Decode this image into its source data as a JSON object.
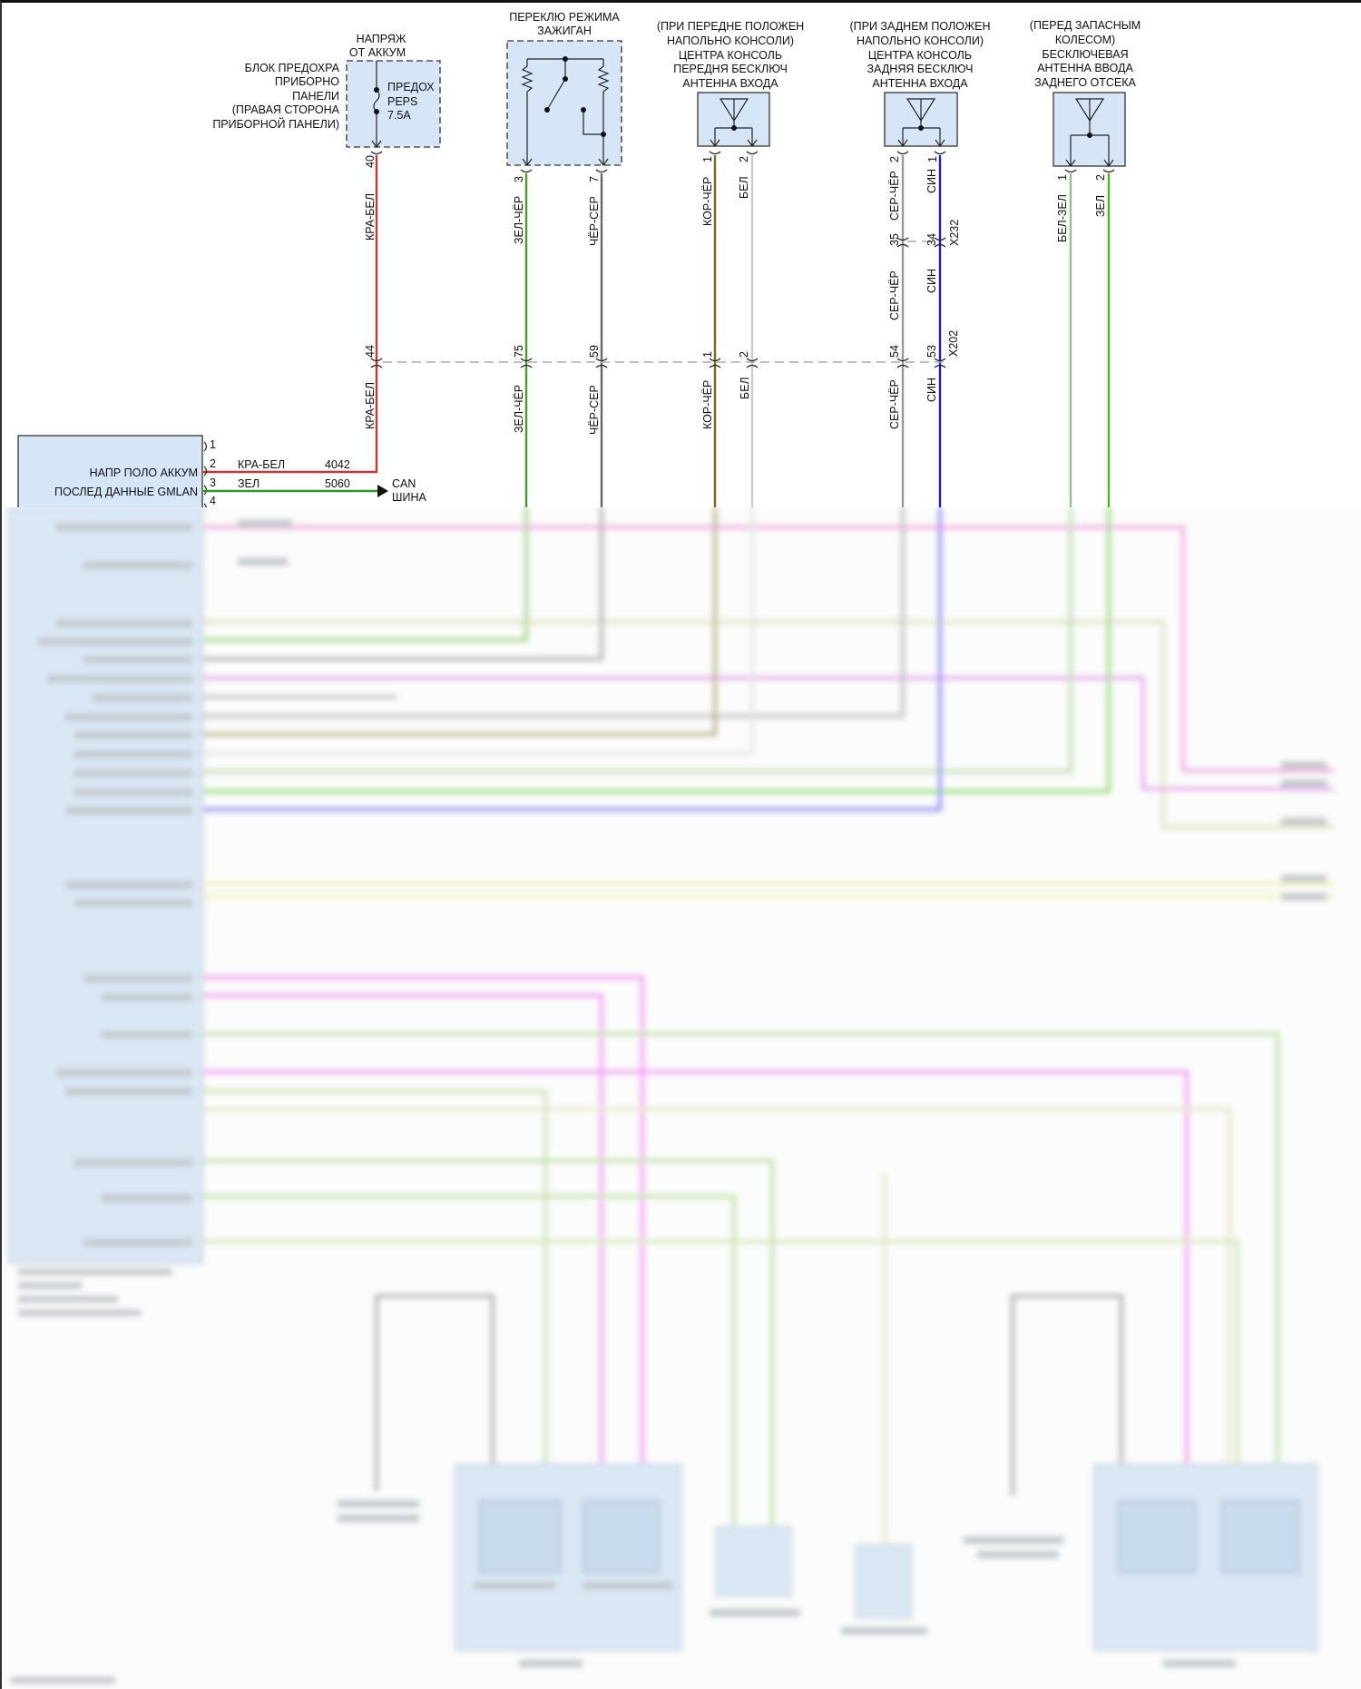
{
  "fuse_block": {
    "supply_title": [
      "НАПРЯЖ",
      "ОТ АККУМ"
    ],
    "label": [
      "БЛОК ПРЕДОХРА",
      "ПРИБОРНО",
      "ПАНЕЛИ",
      "(ПРАВАЯ СТОРОНА",
      "ПРИБОРНОЙ ПАНЕЛИ)"
    ],
    "fuse": [
      "ПРЕДОХ",
      "PEPS",
      "7.5A"
    ],
    "pin": "40"
  },
  "ignition_switch": {
    "title": [
      "ПЕРЕКЛЮ РЕЖИМА",
      "ЗАЖИГАН"
    ],
    "pins": [
      "3",
      "7"
    ]
  },
  "antenna_front": {
    "title": [
      "(ПРИ ПЕРЕДНЕ ПОЛОЖЕН",
      "НАПОЛЬНО КОНСОЛИ)",
      "ЦЕНТРА КОНСОЛЬ",
      "ПЕРЕДНЯ БЕСКЛЮЧ",
      "АНТЕННА ВХОДА"
    ],
    "pins": [
      "1",
      "2"
    ]
  },
  "antenna_rear": {
    "title": [
      "(ПРИ ЗАДНЕМ ПОЛОЖЕН",
      "НАПОЛЬНО КОНСОЛИ)",
      "ЦЕНТРА КОНСОЛЬ",
      "ЗАДНЯЯ БЕСКЛЮЧ",
      "АНТЕННА ВХОДА"
    ],
    "pins": [
      "2",
      "1"
    ]
  },
  "antenna_trunk": {
    "title": [
      "(ПЕРЕД ЗАПАСНЫМ",
      "КОЛЕСОМ)",
      "БЕСКЛЮЧЕВАЯ",
      "АНТЕННА ВВОДА",
      "ЗАДНЕГО ОТСЕКА"
    ],
    "pins": [
      "1",
      "2"
    ],
    "wires": [
      "БЕЛ-ЗЕЛ",
      "ЗЕЛ"
    ]
  },
  "wires_upper": [
    "КРА-БЕЛ",
    "ЗЕЛ-ЧЁР",
    "ЧЁР-СЕР",
    "КОР-ЧЁР",
    "БЕЛ",
    "СЕР-ЧЁР",
    "СИН"
  ],
  "inline_x232": {
    "name": "X232",
    "pins": [
      "35",
      "34"
    ],
    "wires": [
      "СЕР-ЧЁР",
      "СИН"
    ]
  },
  "inline_x202": {
    "name": "X202",
    "pins": [
      "44",
      "75",
      "59",
      "1",
      "2",
      "54",
      "53"
    ]
  },
  "wires_lower": [
    "КРА-БЕЛ",
    "ЗЕЛ-ЧЁР",
    "ЧЁР-СЕР",
    "КОР-ЧЁР",
    "БЕЛ",
    "СЕР-ЧЁР",
    "СИН"
  ],
  "module": {
    "pins": [
      "1",
      "2",
      "3",
      "4"
    ],
    "labels": [
      "НАПР ПОЛО АККУМ",
      "ПОСЛЕД ДАННЫЕ GMLAN"
    ],
    "circuits": [
      {
        "color": "КРА-БЕЛ",
        "number": "4042"
      },
      {
        "color": "ЗЕЛ",
        "number": "5060"
      }
    ],
    "can_label": [
      "CAN",
      "ШИНА"
    ]
  },
  "colors": {
    "red_white": "#cc3333",
    "green_black": "#4a9a2a",
    "black_gray": "#666666",
    "brown_black": "#7a6a2a",
    "white": "#cccccc",
    "gray_black": "#999999",
    "blue": "#1a1acc",
    "white_green": "#9ac08a",
    "green": "#44bb22",
    "component_fill": "#d6e6f7"
  }
}
